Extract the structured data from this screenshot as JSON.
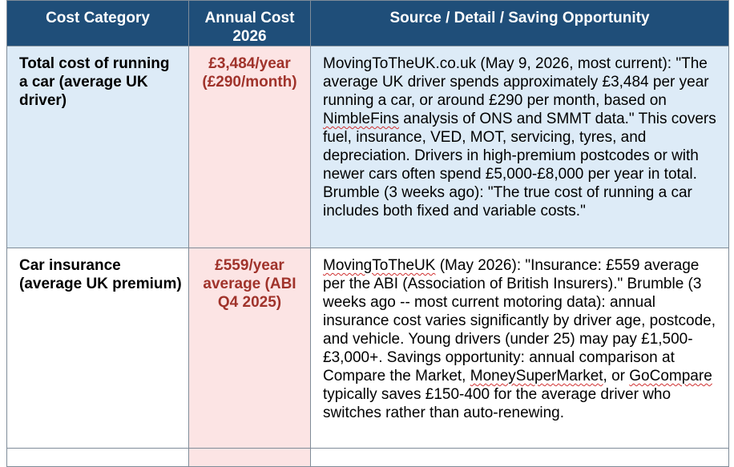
{
  "table": {
    "headers": {
      "category": "Cost Category",
      "cost": "Annual Cost 2026",
      "source": "Source / Detail / Saving Opportunity"
    },
    "rows": [
      {
        "category": "Total cost of running a car (average UK driver)",
        "cost": "£3,484/year (£290/month)",
        "source_parts": [
          "MovingToTheUK.co.uk (May 9, 2026, most current): \"The average UK driver spends approximately £3,484 per year running a car, or around £290 per month, based on ",
          "NimbleFins",
          " analysis of ONS and SMMT data.\" This covers fuel, insurance, VED, MOT, servicing, tyres, and depreciation. Drivers in high-premium postcodes or with newer cars often spend £5,000-£8,000 per year in total. Brumble (3 weeks ago): \"The true cost of running a car includes both fixed and variable costs.\""
        ]
      },
      {
        "category": "Car insurance (average UK premium)",
        "cost": "£559/year average (ABI Q4 2025)",
        "source_parts": [
          "MovingToTheUK",
          " (May 2026): \"Insurance: £559 average per the ABI (Association of British Insurers).\" Brumble (3 weeks ago -- most current motoring data): annual insurance cost varies significantly by driver age, postcode, and vehicle. Young drivers (under 25) may pay £1,500-£3,000+. Savings opportunity: annual comparison at Compare the Market, ",
          "MoneySuperMarket",
          ", or ",
          "GoCompare",
          " typically saves £150-400 for the average driver who switches rather than auto-renewing."
        ]
      }
    ]
  },
  "colors": {
    "header_bg": "#1f4e79",
    "header_text": "#ffffff",
    "row_blue": "#ddebf7",
    "cost_pink": "#fce4e4",
    "cost_text": "#a0332b",
    "spell_underline": "#d03030"
  }
}
